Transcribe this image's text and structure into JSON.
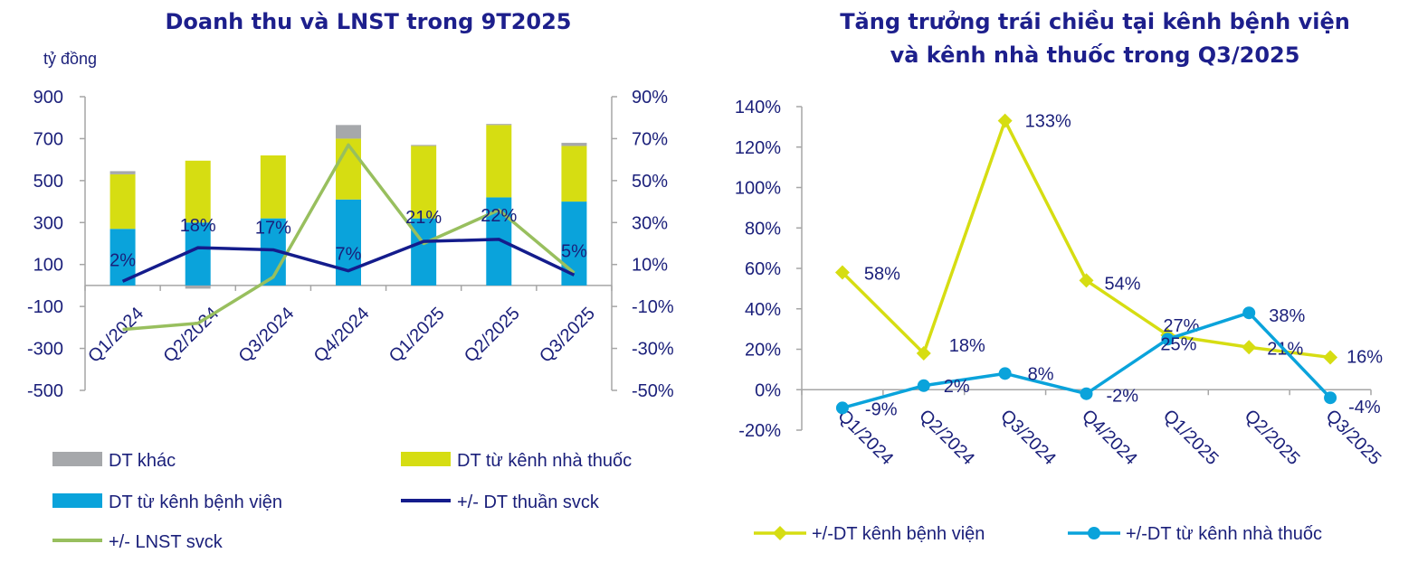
{
  "colors": {
    "dt_khac": "#a6a8ab",
    "nha_thuoc": "#d6dd12",
    "benh_vien": "#0aa3db",
    "dt_thuan_line": "#141c8c",
    "lnst_line": "#98bf5e",
    "axis": "#a6a6a6",
    "text": "#1a1f7a"
  },
  "chart_data": [
    {
      "type": "bar",
      "title": "Doanh thu và LNST trong 9T2025",
      "unit_label": "tỷ đồng",
      "categories": [
        "Q1/2024",
        "Q2/2024",
        "Q3/2024",
        "Q4/2024",
        "Q1/2025",
        "Q2/2025",
        "Q3/2025"
      ],
      "ylim": [
        -500,
        900
      ],
      "yticks": [
        "900",
        "700",
        "500",
        "300",
        "100",
        "-100",
        "-300",
        "-500"
      ],
      "ytick_values": [
        900,
        700,
        500,
        300,
        100,
        -100,
        -300,
        -500
      ],
      "y2lim": [
        -0.5,
        0.9
      ],
      "y2ticks": [
        "90%",
        "70%",
        "50%",
        "30%",
        "10%",
        "-10%",
        "-30%",
        "-50%"
      ],
      "y2tick_values": [
        0.9,
        0.7,
        0.5,
        0.3,
        0.1,
        -0.1,
        -0.3,
        -0.5
      ],
      "series": [
        {
          "name": "DT từ kênh bệnh viện",
          "kind": "bar",
          "color_key": "benh_vien",
          "values": [
            270,
            300,
            320,
            410,
            320,
            420,
            400
          ]
        },
        {
          "name": "DT từ kênh nhà thuốc",
          "kind": "bar",
          "color_key": "nha_thuoc",
          "values": [
            260,
            295,
            300,
            290,
            345,
            345,
            265
          ]
        },
        {
          "name": "DT khác",
          "kind": "bar",
          "color_key": "dt_khac",
          "values": [
            15,
            -15,
            0,
            65,
            5,
            5,
            15
          ]
        },
        {
          "name": "+/- DT thuần svck",
          "kind": "line",
          "axis": "right",
          "color_key": "dt_thuan_line",
          "values": [
            0.02,
            0.18,
            0.17,
            0.07,
            0.21,
            0.22,
            0.05
          ]
        },
        {
          "name": "+/- LNST svck",
          "kind": "line",
          "axis": "right",
          "color_key": "lnst_line",
          "values": [
            -0.21,
            -0.18,
            0.04,
            0.67,
            0.2,
            0.36,
            0.06
          ]
        }
      ],
      "data_labels": [
        "2%",
        "18%",
        "17%",
        "7%",
        "21%",
        "22%",
        "5%"
      ],
      "legend": [
        "DT khác",
        "DT từ kênh nhà thuốc",
        "DT từ kênh bệnh viện",
        "+/- DT thuần svck",
        "+/- LNST svck"
      ],
      "legend_position": "bottom",
      "grid": false
    },
    {
      "type": "line",
      "title": [
        "Tăng trưởng trái chiều tại kênh bệnh viện",
        "và kênh nhà thuốc trong Q3/2025"
      ],
      "categories": [
        "Q1/2024",
        "Q2/2024",
        "Q3/2024",
        "Q4/2024",
        "Q1/2025",
        "Q2/2025",
        "Q3/2025"
      ],
      "ylim": [
        -0.2,
        1.4
      ],
      "yticks": [
        "140%",
        "120%",
        "100%",
        "80%",
        "60%",
        "40%",
        "20%",
        "0%",
        "-20%"
      ],
      "ytick_values": [
        1.4,
        1.2,
        1.0,
        0.8,
        0.6,
        0.4,
        0.2,
        0.0,
        -0.2
      ],
      "series": [
        {
          "name": "+/-DT kênh bệnh viện",
          "marker": "diamond",
          "color_key": "nha_thuoc",
          "values": [
            0.58,
            0.18,
            1.33,
            0.54,
            0.27,
            0.21,
            0.16
          ],
          "labels": [
            "58%",
            "18%",
            "133%",
            "54%",
            "27%",
            "21%",
            "16%"
          ]
        },
        {
          "name": "+/-DT từ kênh nhà thuốc",
          "marker": "circle",
          "color_key": "benh_vien",
          "values": [
            -0.09,
            0.02,
            0.08,
            -0.02,
            0.25,
            0.38,
            -0.04
          ],
          "labels": [
            "-9%",
            "2%",
            "8%",
            "-2%",
            "25%",
            "38%",
            "-4%"
          ]
        }
      ],
      "legend": [
        "+/-DT kênh bệnh viện",
        "+/-DT từ kênh nhà thuốc"
      ],
      "legend_position": "bottom",
      "grid": false
    }
  ]
}
